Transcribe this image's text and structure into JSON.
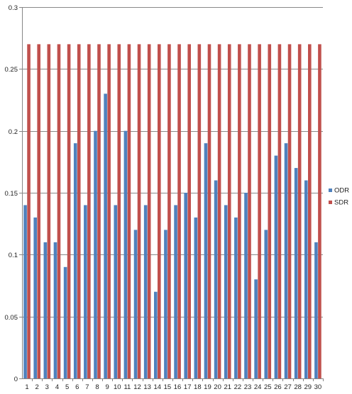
{
  "chart_data": {
    "type": "bar",
    "title": "",
    "xlabel": "",
    "ylabel": "",
    "ylim": [
      0,
      0.3
    ],
    "yticks": [
      0,
      0.05,
      0.1,
      0.15,
      0.2,
      0.25,
      0.3
    ],
    "ytick_labels": [
      "0",
      "0.05",
      "0.1",
      "0.15",
      "0.2",
      "0.25",
      "0.3"
    ],
    "grid": true,
    "legend_position": "right",
    "categories": [
      "1",
      "2",
      "3",
      "4",
      "5",
      "6",
      "7",
      "8",
      "9",
      "10",
      "11",
      "12",
      "13",
      "14",
      "15",
      "16",
      "17",
      "18",
      "19",
      "20",
      "21",
      "22",
      "23",
      "24",
      "25",
      "26",
      "27",
      "28",
      "29",
      "30"
    ],
    "series": [
      {
        "name": "ODR",
        "color": "#4f81bd",
        "values": [
          0.14,
          0.13,
          0.11,
          0.11,
          0.09,
          0.19,
          0.14,
          0.2,
          0.23,
          0.14,
          0.2,
          0.12,
          0.14,
          0.07,
          0.12,
          0.14,
          0.15,
          0.13,
          0.19,
          0.16,
          0.14,
          0.13,
          0.15,
          0.08,
          0.12,
          0.18,
          0.19,
          0.17,
          0.16,
          0.11
        ]
      },
      {
        "name": "SDR",
        "color": "#c0504d",
        "values": [
          0.27,
          0.27,
          0.27,
          0.27,
          0.27,
          0.27,
          0.27,
          0.27,
          0.27,
          0.27,
          0.27,
          0.27,
          0.27,
          0.27,
          0.27,
          0.27,
          0.27,
          0.27,
          0.27,
          0.27,
          0.27,
          0.27,
          0.27,
          0.27,
          0.27,
          0.27,
          0.27,
          0.27,
          0.27,
          0.27
        ]
      }
    ],
    "gridline_color": "#888888",
    "axis_color": "#868686"
  }
}
